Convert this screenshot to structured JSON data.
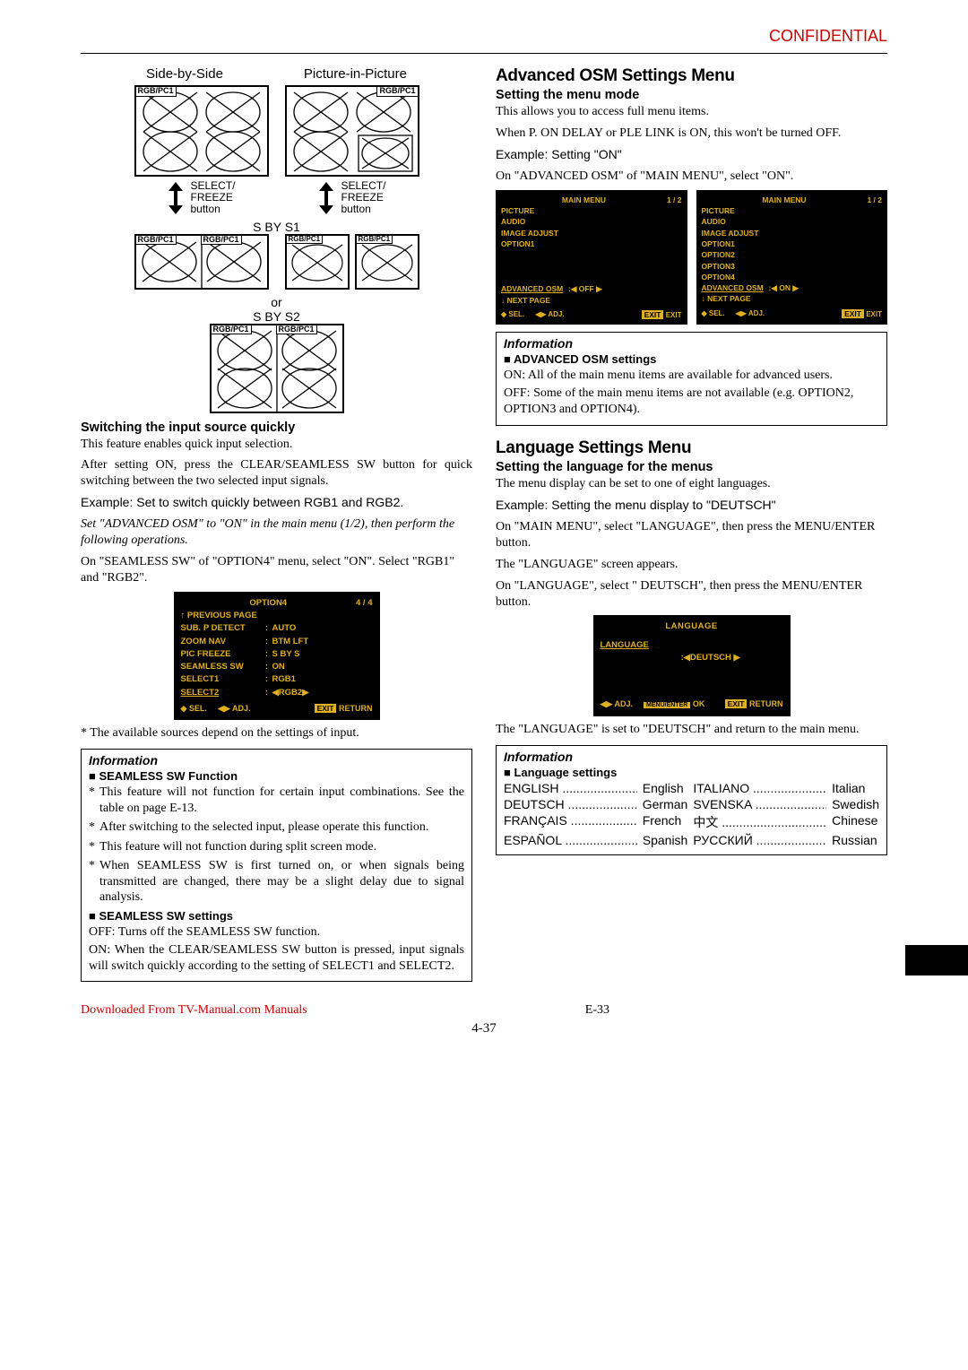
{
  "header": {
    "confidential": "CONFIDENTIAL"
  },
  "left": {
    "sbs_label": "Side-by-Side",
    "pip_label": "Picture-in-Picture",
    "rgb_pc1": "RGB/PC1",
    "select_freeze": "SELECT/\nFREEZE\nbutton",
    "sbys1": "S BY S1",
    "or": "or",
    "sbys2": "S BY S2",
    "h_switch": "Switching the input source quickly",
    "p1": "This feature enables quick input selection.",
    "p2": "After setting ON, press the CLEAR/SEAMLESS SW button for quick switching between the two selected input signals.",
    "p3": "Example: Set to switch quickly between RGB1 and RGB2.",
    "p4_italic": "Set \"ADVANCED OSM\" to \"ON\" in the main menu (1/2), then perform the following operations.",
    "p5": "On \"SEAMLESS SW\" of \"OPTION4\" menu, select \"ON\". Select \"RGB1\" and \"RGB2\".",
    "osd": {
      "title": "OPTION4",
      "page": "4 / 4",
      "prev": "↑  PREVIOUS PAGE",
      "rows": [
        {
          "k": "SUB. P DETECT",
          "v": "AUTO"
        },
        {
          "k": "ZOOM NAV",
          "v": "BTM LFT"
        },
        {
          "k": "PIC FREEZE",
          "v": "S BY S"
        },
        {
          "k": "SEAMLESS SW",
          "v": "ON"
        },
        {
          "k": "SELECT1",
          "v": "RGB1"
        },
        {
          "k": "SELECT2",
          "v": "◀RGB2▶",
          "hl": true
        }
      ],
      "sel": "SEL.",
      "adj": "ADJ.",
      "ret": "RETURN"
    },
    "note_avail": "* The available sources depend on the settings of input.",
    "info1": {
      "title": "Information",
      "h1": "SEAMLESS SW Function",
      "bul": [
        "This feature will not function for certain input combinations. See the table on page E-13.",
        "After switching to the selected input, please operate this function.",
        "This feature will not function during split screen mode.",
        "When SEAMLESS SW is first turned on, or when signals being transmitted are changed, there may be a slight delay due to signal analysis."
      ],
      "h2": "SEAMLESS SW settings",
      "off": "OFF: Turns off the SEAMLESS SW function.",
      "on": "ON: When the CLEAR/SEAMLESS SW button is pressed, input signals will switch quickly according to the setting of SELECT1 and SELECT2."
    }
  },
  "right": {
    "h1": "Advanced OSM Settings Menu",
    "h2": "Setting the menu mode",
    "p1": "This allows you to access full menu items.",
    "p2": "When P. ON DELAY or PLE LINK is ON, this won't be turned OFF.",
    "p3": "Example: Setting \"ON\"",
    "p4": "On \"ADVANCED OSM\" of \"MAIN MENU\", select \"ON\".",
    "osd_a": {
      "title": "MAIN MENU",
      "page": "1 / 2",
      "items": [
        "PICTURE",
        "AUDIO",
        "IMAGE ADJUST",
        "OPTION1"
      ],
      "adv": "ADVANCED OSM",
      "adv_v": "◀ OFF ▶",
      "next": "↓  NEXT PAGE",
      "sel": "SEL.",
      "adj": "ADJ.",
      "exit": "EXIT"
    },
    "osd_b": {
      "title": "MAIN MENU",
      "page": "1 / 2",
      "items": [
        "PICTURE",
        "AUDIO",
        "IMAGE ADJUST",
        "OPTION1",
        "OPTION2",
        "OPTION3",
        "OPTION4"
      ],
      "adv": "ADVANCED OSM",
      "adv_v": "◀ ON  ▶",
      "next": "↓  NEXT PAGE",
      "sel": "SEL.",
      "adj": "ADJ.",
      "exit": "EXIT"
    },
    "info1": {
      "title": "Information",
      "h1": "ADVANCED OSM settings",
      "on": "ON: All of the main menu items are available for advanced users.",
      "off": "OFF: Some of the main menu items are not available (e.g. OPTION2, OPTION3 and OPTION4)."
    },
    "h3": "Language Settings Menu",
    "h4": "Setting the language for the menus",
    "p5": "The menu display can be set to one of eight languages.",
    "p6": "Example: Setting the menu display to \"DEUTSCH\"",
    "p7": "On \"MAIN MENU\", select \"LANGUAGE\", then press the MENU/ENTER button.",
    "p8": "The \"LANGUAGE\" screen appears.",
    "p9": "On \"LANGUAGE\", select \" DEUTSCH\", then press the MENU/ENTER button.",
    "osd_lang": {
      "title": "LANGUAGE",
      "row": "LANGUAGE",
      "val": "◀DEUTSCH ▶",
      "adj": "ADJ.",
      "ok": "OK",
      "ret": "RETURN",
      "me": "MENU/ENTER"
    },
    "p10": "The \"LANGUAGE\" is set to \"DEUTSCH\" and return to the main menu.",
    "info2": {
      "title": "Information",
      "h1": "Language settings",
      "langs": [
        {
          "k": "ENGLISH",
          "v": "English"
        },
        {
          "k": "DEUTSCH",
          "v": "German"
        },
        {
          "k": "FRANÇAIS",
          "v": "French"
        },
        {
          "k": "ESPAÑOL",
          "v": "Spanish"
        },
        {
          "k": "ITALIANO",
          "v": "Italian"
        },
        {
          "k": "SVENSKA",
          "v": "Swedish"
        },
        {
          "k": "中文",
          "v": "Chinese"
        },
        {
          "k": "РУССКИЙ",
          "v": "Russian"
        }
      ]
    }
  },
  "footer": {
    "dl": "Downloaded From TV-Manual.com Manuals",
    "pg": "E-33",
    "pg2": "4-37"
  },
  "colors": {
    "accent": "#e0b020",
    "red": "#cc0000",
    "black": "#000000",
    "white": "#ffffff"
  }
}
